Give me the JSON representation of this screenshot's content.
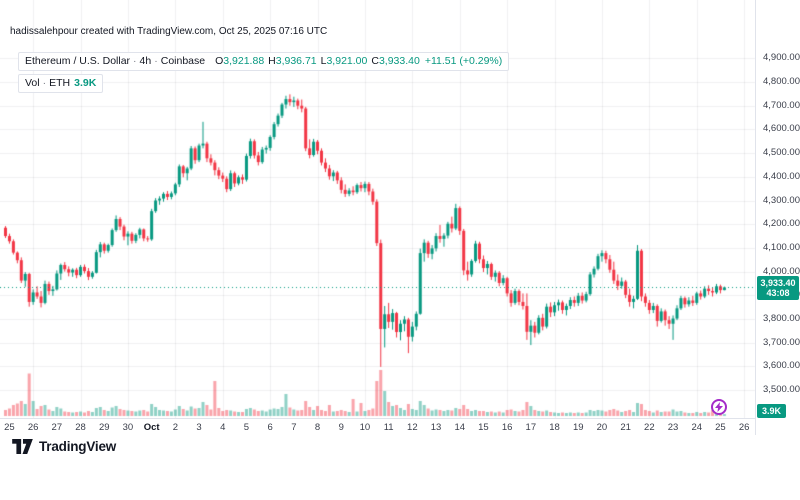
{
  "watermark": "hadissalehpour created with TradingView.com, Oct 25, 2025 07:16 UTC",
  "legend": {
    "symbol": "Ethereum / U.S. Dollar",
    "separator": "·",
    "interval": "4h",
    "exchange": "Coinbase",
    "o_label": "O",
    "o_value": "3,921.88",
    "h_label": "H",
    "h_value": "3,936.71",
    "l_label": "L",
    "l_value": "3,921.00",
    "c_label": "C",
    "c_value": "3,933.40",
    "change_text": "+11.51 (+0.29%)",
    "vol_label": "Vol",
    "vol_unit": "ETH",
    "vol_value": "3.9K"
  },
  "price_axis": {
    "badge_price": "3,933.40",
    "badge_countdown": "43:08"
  },
  "volume_badge_text": "3.9K",
  "logo_text": "TradingView",
  "colors": {
    "up": "#089981",
    "down": "#F23645",
    "vol_up": "rgba(8,153,129,0.45)",
    "vol_down": "rgba(242,54,69,0.45)",
    "grid": "rgba(42,46,57,0.07)",
    "badge": "#089981",
    "event": "#A42CC9",
    "axis_text": "#131722"
  },
  "chart_data": {
    "type": "candlestick",
    "title": "Ethereum / U.S. Dollar · 4h · Coinbase",
    "symbol": "ETH/USD",
    "exchange": "Coinbase",
    "interval": "4h",
    "start": "2025-09-24 20:00 UTC",
    "last_price": 3933.4,
    "prev_close": 3921.89,
    "change": 11.51,
    "change_pct": 0.29,
    "current_volume_k_eth": 3.9,
    "countdown": "43:08",
    "y_ticks": [
      4900,
      4800,
      4700,
      4600,
      4500,
      4400,
      4300,
      4200,
      4100,
      4000,
      3900,
      3800,
      3700,
      3600,
      3500
    ],
    "time_ticks": [
      {
        "label": "25",
        "i": 1
      },
      {
        "label": "26",
        "i": 7
      },
      {
        "label": "27",
        "i": 13
      },
      {
        "label": "28",
        "i": 19
      },
      {
        "label": "29",
        "i": 25
      },
      {
        "label": "30",
        "i": 31
      },
      {
        "label": "Oct",
        "i": 37
      },
      {
        "label": "2",
        "i": 43
      },
      {
        "label": "3",
        "i": 49
      },
      {
        "label": "4",
        "i": 55
      },
      {
        "label": "5",
        "i": 61
      },
      {
        "label": "6",
        "i": 67
      },
      {
        "label": "7",
        "i": 73
      },
      {
        "label": "8",
        "i": 79
      },
      {
        "label": "9",
        "i": 85
      },
      {
        "label": "10",
        "i": 91
      },
      {
        "label": "11",
        "i": 97
      },
      {
        "label": "12",
        "i": 103
      },
      {
        "label": "13",
        "i": 109
      },
      {
        "label": "14",
        "i": 115
      },
      {
        "label": "15",
        "i": 121
      },
      {
        "label": "16",
        "i": 127
      },
      {
        "label": "17",
        "i": 133
      },
      {
        "label": "18",
        "i": 139
      },
      {
        "label": "19",
        "i": 145
      },
      {
        "label": "20",
        "i": 151
      },
      {
        "label": "21",
        "i": 157
      },
      {
        "label": "22",
        "i": 163
      },
      {
        "label": "23",
        "i": 169
      },
      {
        "label": "24",
        "i": 175
      },
      {
        "label": "25",
        "i": 181
      },
      {
        "label": "26",
        "i": 187
      }
    ],
    "columns": [
      "open",
      "high",
      "low",
      "close",
      "volume_k_eth"
    ],
    "candles": [
      [
        4185,
        4192,
        4142,
        4150,
        12
      ],
      [
        4150,
        4160,
        4118,
        4128,
        15
      ],
      [
        4128,
        4136,
        4072,
        4080,
        22
      ],
      [
        4080,
        4085,
        4035,
        4048,
        25
      ],
      [
        4048,
        4060,
        3952,
        3962,
        30
      ],
      [
        3962,
        3998,
        3936,
        3990,
        24
      ],
      [
        3990,
        3995,
        3852,
        3872,
        85
      ],
      [
        3872,
        3925,
        3860,
        3912,
        30
      ],
      [
        3912,
        3938,
        3885,
        3895,
        14
      ],
      [
        3895,
        3918,
        3849,
        3868,
        20
      ],
      [
        3868,
        3962,
        3862,
        3948,
        22
      ],
      [
        3948,
        3958,
        3902,
        3918,
        13
      ],
      [
        3918,
        3940,
        3898,
        3925,
        10
      ],
      [
        3925,
        4005,
        3920,
        3992,
        18
      ],
      [
        3992,
        4034,
        3965,
        4028,
        15
      ],
      [
        4028,
        4040,
        4000,
        4010,
        9
      ],
      [
        4010,
        4022,
        3980,
        3996,
        8
      ],
      [
        3996,
        4014,
        3978,
        4008,
        7
      ],
      [
        4008,
        4016,
        3972,
        3985,
        8
      ],
      [
        3985,
        4028,
        3978,
        4020,
        9
      ],
      [
        4020,
        4030,
        3992,
        4002,
        7
      ],
      [
        4002,
        4015,
        3964,
        3978,
        10
      ],
      [
        3978,
        4002,
        3970,
        3995,
        8
      ],
      [
        3995,
        4092,
        3992,
        4082,
        16
      ],
      [
        4082,
        4125,
        4060,
        4115,
        18
      ],
      [
        4115,
        4122,
        4076,
        4088,
        12
      ],
      [
        4088,
        4118,
        4080,
        4112,
        10
      ],
      [
        4112,
        4182,
        4105,
        4175,
        17
      ],
      [
        4175,
        4237,
        4168,
        4222,
        20
      ],
      [
        4222,
        4230,
        4175,
        4190,
        14
      ],
      [
        4190,
        4198,
        4132,
        4148,
        12
      ],
      [
        4148,
        4170,
        4111,
        4160,
        11
      ],
      [
        4160,
        4168,
        4118,
        4130,
        10
      ],
      [
        4130,
        4162,
        4120,
        4155,
        9
      ],
      [
        4155,
        4185,
        4140,
        4178,
        11
      ],
      [
        4178,
        4182,
        4128,
        4140,
        12
      ],
      [
        4140,
        4150,
        4126,
        4136,
        9
      ],
      [
        4136,
        4265,
        4130,
        4255,
        24
      ],
      [
        4255,
        4310,
        4248,
        4300,
        18
      ],
      [
        4300,
        4318,
        4282,
        4308,
        12
      ],
      [
        4308,
        4335,
        4295,
        4328,
        11
      ],
      [
        4328,
        4340,
        4302,
        4315,
        10
      ],
      [
        4315,
        4338,
        4305,
        4330,
        9
      ],
      [
        4330,
        4375,
        4322,
        4368,
        13
      ],
      [
        4368,
        4452,
        4357,
        4444,
        20
      ],
      [
        4444,
        4450,
        4398,
        4415,
        14
      ],
      [
        4415,
        4442,
        4385,
        4435,
        11
      ],
      [
        4435,
        4530,
        4428,
        4520,
        19
      ],
      [
        4520,
        4528,
        4455,
        4470,
        15
      ],
      [
        4470,
        4540,
        4462,
        4532,
        16
      ],
      [
        4532,
        4632,
        4520,
        4540,
        28
      ],
      [
        4540,
        4548,
        4462,
        4478,
        22
      ],
      [
        4478,
        4495,
        4448,
        4460,
        13
      ],
      [
        4460,
        4470,
        4406,
        4428,
        70
      ],
      [
        4428,
        4440,
        4390,
        4405,
        16
      ],
      [
        4405,
        4418,
        4378,
        4392,
        10
      ],
      [
        4392,
        4402,
        4335,
        4348,
        12
      ],
      [
        4348,
        4427,
        4340,
        4415,
        11
      ],
      [
        4415,
        4422,
        4357,
        4372,
        9
      ],
      [
        4372,
        4406,
        4364,
        4398,
        8
      ],
      [
        4398,
        4410,
        4370,
        4388,
        8
      ],
      [
        4388,
        4498,
        4380,
        4488,
        14
      ],
      [
        4488,
        4561,
        4477,
        4550,
        16
      ],
      [
        4550,
        4558,
        4477,
        4490,
        13
      ],
      [
        4490,
        4505,
        4448,
        4462,
        10
      ],
      [
        4462,
        4526,
        4455,
        4515,
        11
      ],
      [
        4515,
        4532,
        4498,
        4522,
        9
      ],
      [
        4522,
        4575,
        4510,
        4568,
        13
      ],
      [
        4568,
        4631,
        4558,
        4622,
        15
      ],
      [
        4622,
        4667,
        4612,
        4658,
        14
      ],
      [
        4658,
        4712,
        4648,
        4705,
        18
      ],
      [
        4705,
        4742,
        4688,
        4728,
        44
      ],
      [
        4728,
        4748,
        4700,
        4715,
        17
      ],
      [
        4715,
        4738,
        4695,
        4722,
        13
      ],
      [
        4722,
        4730,
        4685,
        4700,
        11
      ],
      [
        4700,
        4726,
        4672,
        4688,
        12
      ],
      [
        4688,
        4695,
        4508,
        4520,
        30
      ],
      [
        4520,
        4558,
        4478,
        4492,
        18
      ],
      [
        4492,
        4560,
        4485,
        4548,
        12
      ],
      [
        4548,
        4555,
        4495,
        4510,
        20
      ],
      [
        4510,
        4520,
        4448,
        4460,
        12
      ],
      [
        4460,
        4478,
        4420,
        4435,
        10
      ],
      [
        4435,
        4450,
        4388,
        4402,
        22
      ],
      [
        4402,
        4428,
        4382,
        4418,
        9
      ],
      [
        4418,
        4425,
        4370,
        4385,
        10
      ],
      [
        4385,
        4398,
        4330,
        4345,
        12
      ],
      [
        4345,
        4368,
        4315,
        4328,
        10
      ],
      [
        4328,
        4352,
        4318,
        4342,
        8
      ],
      [
        4342,
        4360,
        4322,
        4335,
        34
      ],
      [
        4335,
        4372,
        4328,
        4365,
        9
      ],
      [
        4365,
        4378,
        4338,
        4352,
        26
      ],
      [
        4352,
        4380,
        4335,
        4370,
        10
      ],
      [
        4370,
        4378,
        4322,
        4338,
        12
      ],
      [
        4338,
        4350,
        4282,
        4295,
        15
      ],
      [
        4295,
        4305,
        4108,
        4120,
        70
      ],
      [
        4120,
        4135,
        3598,
        3758,
        92
      ],
      [
        3758,
        3855,
        3680,
        3820,
        50
      ],
      [
        3820,
        3868,
        3762,
        3788,
        28
      ],
      [
        3788,
        3842,
        3755,
        3825,
        20
      ],
      [
        3825,
        3830,
        3722,
        3745,
        22
      ],
      [
        3745,
        3795,
        3710,
        3780,
        16
      ],
      [
        3780,
        3812,
        3748,
        3798,
        12
      ],
      [
        3798,
        3805,
        3656,
        3725,
        24
      ],
      [
        3725,
        3788,
        3705,
        3768,
        14
      ],
      [
        3768,
        3832,
        3752,
        3822,
        12
      ],
      [
        3822,
        4097,
        3818,
        4078,
        30
      ],
      [
        4078,
        4136,
        4042,
        4122,
        22
      ],
      [
        4122,
        4130,
        4058,
        4075,
        15
      ],
      [
        4075,
        4112,
        4052,
        4098,
        11
      ],
      [
        4098,
        4162,
        4085,
        4150,
        13
      ],
      [
        4150,
        4197,
        4122,
        4138,
        12
      ],
      [
        4138,
        4162,
        4105,
        4152,
        10
      ],
      [
        4152,
        4210,
        4140,
        4202,
        12
      ],
      [
        4202,
        4232,
        4165,
        4182,
        11
      ],
      [
        4182,
        4286,
        4175,
        4268,
        16
      ],
      [
        4268,
        4275,
        4155,
        4172,
        14
      ],
      [
        4172,
        4180,
        3985,
        4005,
        22
      ],
      [
        4005,
        4042,
        3962,
        3988,
        14
      ],
      [
        3988,
        4052,
        3978,
        4045,
        10
      ],
      [
        4045,
        4130,
        4038,
        4118,
        12
      ],
      [
        4118,
        4126,
        4035,
        4052,
        10
      ],
      [
        4052,
        4068,
        3998,
        4015,
        10
      ],
      [
        4015,
        4045,
        3988,
        4032,
        8
      ],
      [
        4032,
        4038,
        3965,
        3978,
        9
      ],
      [
        3978,
        4005,
        3958,
        3995,
        7
      ],
      [
        3995,
        4002,
        3938,
        3952,
        9
      ],
      [
        3952,
        3985,
        3942,
        3972,
        7
      ],
      [
        3972,
        3978,
        3895,
        3908,
        12
      ],
      [
        3908,
        3922,
        3852,
        3868,
        13
      ],
      [
        3868,
        3928,
        3860,
        3918,
        10
      ],
      [
        3918,
        3925,
        3858,
        3872,
        9
      ],
      [
        3872,
        3908,
        3840,
        3855,
        12
      ],
      [
        3855,
        3908,
        3712,
        3746,
        28
      ],
      [
        3746,
        3795,
        3690,
        3772,
        20
      ],
      [
        3772,
        3788,
        3722,
        3742,
        12
      ],
      [
        3742,
        3816,
        3735,
        3805,
        10
      ],
      [
        3805,
        3822,
        3752,
        3768,
        9
      ],
      [
        3768,
        3865,
        3760,
        3852,
        11
      ],
      [
        3852,
        3870,
        3808,
        3828,
        8
      ],
      [
        3828,
        3872,
        3812,
        3858,
        7
      ],
      [
        3858,
        3882,
        3835,
        3870,
        6
      ],
      [
        3870,
        3878,
        3822,
        3838,
        7
      ],
      [
        3838,
        3865,
        3815,
        3855,
        6
      ],
      [
        3855,
        3892,
        3842,
        3880,
        7
      ],
      [
        3880,
        3895,
        3852,
        3868,
        6
      ],
      [
        3868,
        3910,
        3855,
        3898,
        7
      ],
      [
        3898,
        3912,
        3865,
        3878,
        6
      ],
      [
        3878,
        3915,
        3870,
        3905,
        7
      ],
      [
        3905,
        3998,
        3898,
        3988,
        12
      ],
      [
        3988,
        4022,
        3975,
        4012,
        10
      ],
      [
        4012,
        4075,
        4005,
        4065,
        12
      ],
      [
        4065,
        4090,
        4042,
        4078,
        11
      ],
      [
        4078,
        4088,
        4035,
        4052,
        9
      ],
      [
        4052,
        4070,
        3995,
        4008,
        12
      ],
      [
        4008,
        4042,
        3948,
        3962,
        14
      ],
      [
        3962,
        3988,
        3922,
        3940,
        11
      ],
      [
        3940,
        3975,
        3928,
        3958,
        8
      ],
      [
        3958,
        3965,
        3888,
        3902,
        10
      ],
      [
        3902,
        3928,
        3852,
        3872,
        12
      ],
      [
        3872,
        3898,
        3845,
        3885,
        8
      ],
      [
        3885,
        4112,
        3880,
        4088,
        26
      ],
      [
        4088,
        4095,
        3875,
        3895,
        24
      ],
      [
        3895,
        3908,
        3852,
        3868,
        12
      ],
      [
        3868,
        3880,
        3822,
        3838,
        10
      ],
      [
        3838,
        3868,
        3825,
        3855,
        7
      ],
      [
        3855,
        3862,
        3768,
        3792,
        11
      ],
      [
        3792,
        3845,
        3785,
        3832,
        8
      ],
      [
        3832,
        3840,
        3772,
        3795,
        9
      ],
      [
        3795,
        3812,
        3758,
        3780,
        9
      ],
      [
        3780,
        3815,
        3712,
        3802,
        13
      ],
      [
        3802,
        3858,
        3795,
        3845,
        9
      ],
      [
        3845,
        3898,
        3838,
        3888,
        10
      ],
      [
        3888,
        3895,
        3848,
        3862,
        7
      ],
      [
        3862,
        3892,
        3852,
        3878,
        6
      ],
      [
        3878,
        3898,
        3855,
        3868,
        6
      ],
      [
        3868,
        3915,
        3860,
        3908,
        8
      ],
      [
        3908,
        3920,
        3882,
        3895,
        6
      ],
      [
        3895,
        3938,
        3888,
        3928,
        8
      ],
      [
        3928,
        3942,
        3902,
        3918,
        7
      ],
      [
        3918,
        3935,
        3895,
        3912,
        12
      ],
      [
        3912,
        3948,
        3905,
        3938,
        22
      ],
      [
        3938,
        3945,
        3908,
        3921.9,
        6
      ],
      [
        3921.88,
        3936.71,
        3921,
        3933.4,
        3.9
      ]
    ]
  }
}
